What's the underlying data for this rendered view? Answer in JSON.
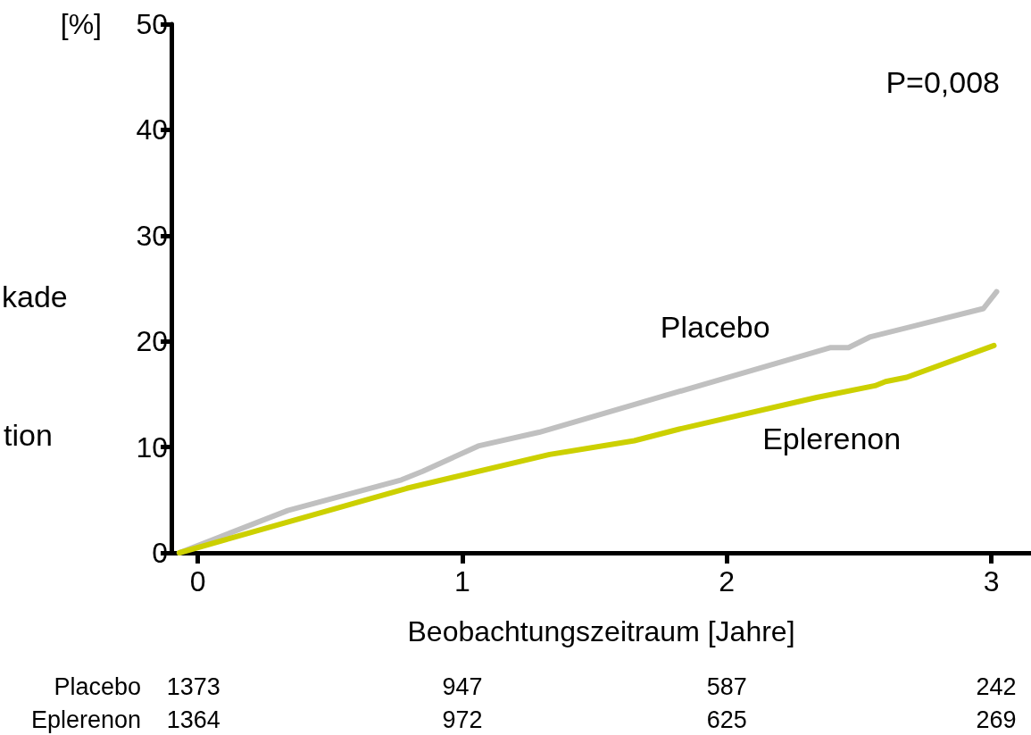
{
  "chart_data": {
    "type": "line",
    "ylabel": "[%]",
    "xlabel": "Beobachtungszeitraum [Jahre]",
    "xlim": [
      -0.1,
      3.15
    ],
    "xticks": [
      0,
      1,
      2,
      3
    ],
    "ylim": [
      0,
      50
    ],
    "yticks": [
      0,
      10,
      20,
      30,
      40,
      50
    ],
    "grid": false,
    "legend": false,
    "line_style": "solid",
    "series": [
      {
        "name": "Placebo",
        "color": "#c0c0c0",
        "x": [
          -0.07,
          0.34,
          0.77,
          0.85,
          1.06,
          1.29,
          2.39,
          2.46,
          2.54,
          2.97,
          3.02
        ],
        "values": [
          0,
          4.0,
          6.9,
          7.7,
          10.1,
          11.4,
          19.4,
          19.4,
          20.4,
          23.1,
          24.7
        ]
      },
      {
        "name": "Eplerenon",
        "color": "#ccd000",
        "x": [
          -0.07,
          0.79,
          1.33,
          1.65,
          1.82,
          2.34,
          2.56,
          2.6,
          2.68,
          3.01
        ],
        "values": [
          0,
          6.1,
          9.3,
          10.6,
          11.7,
          14.7,
          15.8,
          16.2,
          16.6,
          19.6
        ]
      }
    ],
    "annotations": [
      "kade",
      "tion",
      "P=0,008",
      "Placebo",
      "1373",
      "947",
      "587",
      "242",
      "Eplerenon",
      "1364",
      "972",
      "625",
      "269"
    ]
  }
}
